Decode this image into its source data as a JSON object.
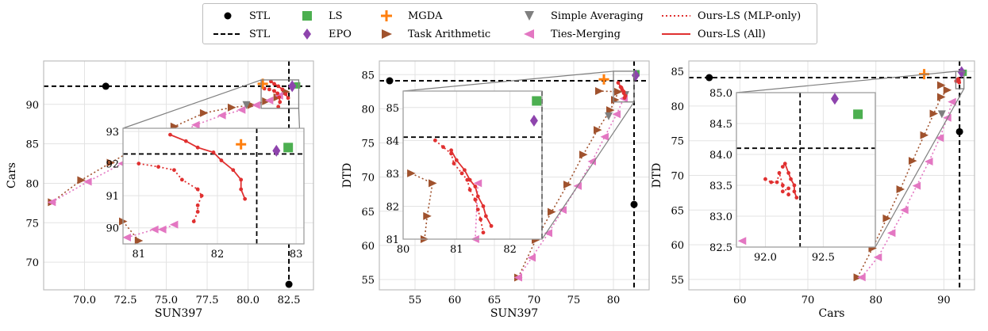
{
  "colors": {
    "STL": "#000000",
    "LS": "#4caf50",
    "EPO": "#8e44ad",
    "MGDA": "#ff7f0e",
    "Task Arithmetic": "#a0522d",
    "Simple Averaging": "#7f7f7f",
    "Ties-Merging": "#e377c2",
    "Ours-LS (MLP-only)": "#e03030",
    "Ours-LS (All)": "#e03030",
    "inset_outline": "#808080"
  },
  "legend": [
    {
      "label": "STL",
      "marker": "dot",
      "color": "#000000"
    },
    {
      "label": "STL",
      "marker": "dashed-line",
      "color": "#000000"
    },
    {
      "label": "LS",
      "marker": "square",
      "color": "#4caf50"
    },
    {
      "label": "EPO",
      "marker": "diamond",
      "color": "#8e44ad"
    },
    {
      "label": "MGDA",
      "marker": "plus",
      "color": "#ff7f0e"
    },
    {
      "label": "Task Arithmetic",
      "marker": "triangle-right",
      "color": "#a0522d"
    },
    {
      "label": "Simple Averaging",
      "marker": "triangle-down",
      "color": "#7f7f7f"
    },
    {
      "label": "Ties-Merging",
      "marker": "triangle-left",
      "color": "#e377c2"
    },
    {
      "label": "Ours-LS (MLP-only)",
      "marker": "dotted-line",
      "color": "#e03030"
    },
    {
      "label": "Ours-LS (All)",
      "marker": "solid-line",
      "color": "#e03030"
    }
  ],
  "chart_data": [
    {
      "type": "scatter",
      "xlabel": "SUN397",
      "ylabel": "Cars",
      "xlim": [
        67.5,
        84
      ],
      "ylim": [
        66.5,
        95.5
      ],
      "xticks": [
        70.0,
        72.5,
        75.0,
        77.5,
        80.0,
        82.5
      ],
      "xtick_labels": [
        "70.0",
        "72.5",
        "75.0",
        "77.5",
        "80.0",
        "82.5"
      ],
      "yticks": [
        70,
        75,
        80,
        85,
        90
      ],
      "stl_dot_x": [
        71.3,
        82.5
      ],
      "stl_dot_y": [
        92.3,
        67.2
      ],
      "stl_vline": 82.5,
      "stl_hline": 92.3,
      "ls": [
        [
          82.1,
          84.7
        ],
        [
          83.0,
          92.4
        ]
      ],
      "epo": [
        [
          80.5,
          83.5
        ],
        [
          82.7,
          92.3
        ]
      ],
      "mgda": [
        [
          80.9,
          92.6
        ]
      ],
      "simple_avg": [
        [
          79.9,
          89.9
        ]
      ],
      "task_arith": [
        [
          68.0,
          77.6
        ],
        [
          69.8,
          80.4
        ],
        [
          71.6,
          82.6
        ],
        [
          73.6,
          85.0
        ],
        [
          75.5,
          87.2
        ],
        [
          77.3,
          88.9
        ],
        [
          79.0,
          89.6
        ],
        [
          80.2,
          89.9
        ],
        [
          81.1,
          90.4
        ],
        [
          81.8,
          90.9
        ],
        [
          82.3,
          91.6
        ]
      ],
      "ties": [
        [
          68.0,
          77.6
        ],
        [
          70.2,
          80.2
        ],
        [
          72.3,
          82.5
        ],
        [
          74.7,
          85.1
        ],
        [
          76.8,
          87.4
        ],
        [
          78.4,
          88.6
        ],
        [
          79.6,
          89.3
        ],
        [
          80.5,
          89.9
        ],
        [
          81.3,
          90.5
        ],
        [
          81.9,
          91.1
        ]
      ],
      "ours_mlp": [
        [
          81.0,
          92.0
        ],
        [
          81.3,
          91.9
        ],
        [
          81.6,
          91.7
        ],
        [
          81.8,
          91.4
        ],
        [
          81.9,
          90.9
        ],
        [
          81.95,
          90.3
        ],
        [
          81.85,
          89.7
        ]
      ],
      "ours_all": [
        [
          81.4,
          92.9
        ],
        [
          81.6,
          92.6
        ],
        [
          81.85,
          92.3
        ],
        [
          82.1,
          91.9
        ],
        [
          82.3,
          91.3
        ],
        [
          82.45,
          90.8
        ]
      ],
      "zoom_x": [
        80.8,
        83.1
      ],
      "zoom_y": [
        89.5,
        93.1
      ],
      "inset_xticks": [
        81,
        82,
        83
      ],
      "inset_xtick_labels": [
        "81",
        "82",
        "83"
      ],
      "inset_yticks": [
        90,
        91,
        92,
        93
      ],
      "inset_ytick_labels": [
        "90",
        "91",
        "92",
        "93"
      ],
      "inset_points": {
        "ls": [
          [
            82.9,
            92.5
          ]
        ],
        "epo": [
          [
            82.75,
            92.4
          ]
        ],
        "mgda": [
          [
            82.3,
            92.6
          ]
        ],
        "task_arith": [
          [
            80.8,
            90.2
          ],
          [
            81.0,
            89.6
          ]
        ],
        "ties": [
          [
            80.85,
            89.7
          ],
          [
            81.2,
            89.95
          ],
          [
            81.3,
            89.95
          ],
          [
            81.45,
            90.1
          ]
        ],
        "ours_mlp": [
          [
            81.0,
            92.0
          ],
          [
            81.25,
            91.9
          ],
          [
            81.45,
            91.8
          ],
          [
            81.55,
            91.5
          ],
          [
            81.75,
            91.2
          ],
          [
            81.8,
            91.0
          ],
          [
            81.75,
            90.7
          ],
          [
            81.75,
            90.5
          ],
          [
            81.7,
            90.2
          ]
        ],
        "ours_all": [
          [
            81.4,
            92.9
          ],
          [
            81.6,
            92.7
          ],
          [
            81.75,
            92.5
          ],
          [
            81.95,
            92.35
          ],
          [
            82.05,
            92.1
          ],
          [
            82.2,
            91.8
          ],
          [
            82.3,
            91.5
          ],
          [
            82.3,
            91.2
          ],
          [
            82.35,
            90.9
          ]
        ]
      }
    },
    {
      "type": "scatter",
      "xlabel": "SUN397",
      "ylabel": "DTD",
      "xlim": [
        50.5,
        84.5
      ],
      "ylim": [
        53.5,
        87
      ],
      "xticks": [
        55,
        60,
        65,
        70,
        75,
        80
      ],
      "xtick_labels": [
        "55",
        "60",
        "65",
        "70",
        "75",
        "80"
      ],
      "yticks": [
        55,
        60,
        65,
        70,
        75,
        80,
        85
      ],
      "stl_dot_x": [
        51.8,
        82.6
      ],
      "stl_dot_y": [
        84.1,
        66.0
      ],
      "stl_vline": 82.6,
      "stl_hline": 84.1,
      "ls": [
        [
          82.9,
          85.2
        ]
      ],
      "epo": [
        [
          82.8,
          84.9
        ]
      ],
      "mgda": [
        [
          78.8,
          84.3
        ]
      ],
      "simple_avg": [
        [
          79.4,
          78.9
        ],
        [
          81.5,
          82.0
        ]
      ],
      "task_arith": [
        [
          68.0,
          55.3
        ],
        [
          70.2,
          60.8
        ],
        [
          72.2,
          64.9
        ],
        [
          74.2,
          68.9
        ],
        [
          76.2,
          73.3
        ],
        [
          78.0,
          76.9
        ],
        [
          79.6,
          79.8
        ],
        [
          80.2,
          81.3
        ],
        [
          80.6,
          82.5
        ],
        [
          78.2,
          82.6
        ]
      ],
      "ties": [
        [
          68.0,
          55.3
        ],
        [
          69.7,
          58.2
        ],
        [
          71.8,
          61.8
        ],
        [
          73.6,
          65.2
        ],
        [
          75.5,
          68.7
        ],
        [
          77.3,
          72.3
        ],
        [
          78.9,
          75.9
        ],
        [
          80.4,
          79.2
        ],
        [
          81.3,
          81.5
        ]
      ],
      "ours_mlp": [
        [
          80.9,
          83.2
        ],
        [
          81.1,
          82.8
        ],
        [
          81.3,
          82.3
        ],
        [
          81.4,
          81.6
        ]
      ],
      "ours_all": [
        [
          80.6,
          83.8
        ],
        [
          81.0,
          83.1
        ],
        [
          81.3,
          82.5
        ],
        [
          81.5,
          81.9
        ]
      ],
      "zoom_x": [
        80,
        82.6
      ],
      "zoom_y": [
        81,
        85.5
      ],
      "inset_xticks": [
        80,
        81,
        82
      ],
      "inset_xtick_labels": [
        "80",
        "81",
        "82"
      ],
      "inset_yticks": [
        81,
        82,
        83,
        84,
        85
      ],
      "inset_ytick_labels": [
        "81",
        "82",
        "83",
        "84",
        "85"
      ],
      "inset_points": {
        "ls": [
          [
            82.5,
            85.2
          ]
        ],
        "epo": [
          [
            82.45,
            84.6
          ]
        ],
        "task_arith": [
          [
            80.15,
            83.0
          ],
          [
            80.55,
            82.7
          ],
          [
            80.45,
            81.7
          ],
          [
            80.4,
            81.0
          ]
        ],
        "ties": [
          [
            81.4,
            82.7
          ],
          [
            81.35,
            81.0
          ]
        ],
        "ours_mlp": [
          [
            80.6,
            84.0
          ],
          [
            80.75,
            83.8
          ],
          [
            80.9,
            83.6
          ],
          [
            80.95,
            83.3
          ],
          [
            81.1,
            83.0
          ],
          [
            81.2,
            82.8
          ],
          [
            81.25,
            82.5
          ],
          [
            81.35,
            82.2
          ],
          [
            81.4,
            81.9
          ],
          [
            81.45,
            81.6
          ],
          [
            81.5,
            81.2
          ]
        ],
        "ours_all": [
          [
            80.9,
            83.7
          ],
          [
            81.0,
            83.4
          ],
          [
            81.15,
            83.1
          ],
          [
            81.25,
            82.8
          ],
          [
            81.35,
            82.6
          ],
          [
            81.4,
            82.3
          ],
          [
            81.5,
            82.0
          ],
          [
            81.55,
            81.7
          ],
          [
            81.65,
            81.4
          ]
        ]
      }
    },
    {
      "type": "scatter",
      "xlabel": "Cars",
      "ylabel": "DTD",
      "xlim": [
        52.5,
        94.5
      ],
      "ylim": [
        53.5,
        86.5
      ],
      "xticks": [
        60,
        70,
        80,
        90
      ],
      "xtick_labels": [
        "60",
        "70",
        "80",
        "90"
      ],
      "yticks": [
        55,
        60,
        65,
        70,
        75,
        80,
        85
      ],
      "stl_dot_x": [
        55.5,
        92.3
      ],
      "stl_dot_y": [
        84.1,
        76.3
      ],
      "stl_vline": 92.3,
      "stl_hline": 84.1,
      "ls": [
        [
          92.9,
          84.8
        ]
      ],
      "epo": [
        [
          92.6,
          84.9
        ]
      ],
      "mgda": [
        [
          87.1,
          84.6
        ]
      ],
      "simple_avg": [
        [
          89.7,
          78.8
        ]
      ],
      "task_arith": [
        [
          77.3,
          55.3
        ],
        [
          79.5,
          59.5
        ],
        [
          81.6,
          63.8
        ],
        [
          83.6,
          68.0
        ],
        [
          85.4,
          72.1
        ],
        [
          87.1,
          75.8
        ],
        [
          88.5,
          78.9
        ],
        [
          89.6,
          81.3
        ],
        [
          90.5,
          82.3
        ],
        [
          89.6,
          83.0
        ]
      ],
      "ties": [
        [
          77.9,
          55.3
        ],
        [
          80.3,
          58.2
        ],
        [
          82.3,
          61.7
        ],
        [
          84.2,
          65.0
        ],
        [
          86.0,
          68.5
        ],
        [
          87.8,
          72.0
        ],
        [
          89.4,
          75.4
        ],
        [
          90.5,
          78.3
        ],
        [
          91.2,
          80.6
        ]
      ],
      "ours_mlp": [
        [
          91.8,
          83.6
        ],
        [
          92.0,
          83.8
        ],
        [
          92.2,
          83.5
        ]
      ],
      "ours_all": [
        [
          92.1,
          83.9
        ],
        [
          92.2,
          83.7
        ],
        [
          92.25,
          83.4
        ]
      ],
      "zoom_x": [
        91.75,
        92.95
      ],
      "zoom_y": [
        82.5,
        85.0
      ],
      "inset_xticks": [
        92.0,
        92.5
      ],
      "inset_xtick_labels": [
        "92.0",
        "92.5"
      ],
      "inset_yticks": [
        82.5,
        83.0,
        83.5,
        84.0,
        84.5,
        85.0
      ],
      "inset_ytick_labels": [
        "82.5",
        "83.0",
        "83.5",
        "84.0",
        "84.5",
        "85.0"
      ],
      "inset_points": {
        "ls": [
          [
            92.8,
            84.65
          ]
        ],
        "epo": [
          [
            92.6,
            84.9
          ]
        ],
        "ties": [
          [
            91.8,
            82.6
          ]
        ],
        "ours_mlp": [
          [
            92.0,
            83.6
          ],
          [
            92.05,
            83.55
          ],
          [
            92.1,
            83.55
          ],
          [
            92.12,
            83.7
          ],
          [
            92.15,
            83.5
          ],
          [
            92.15,
            83.4
          ],
          [
            92.2,
            83.45
          ],
          [
            92.2,
            83.35
          ]
        ],
        "ours_all": [
          [
            92.15,
            83.8
          ],
          [
            92.17,
            83.85
          ],
          [
            92.2,
            83.7
          ],
          [
            92.22,
            83.6
          ],
          [
            92.25,
            83.5
          ],
          [
            92.25,
            83.4
          ],
          [
            92.27,
            83.3
          ]
        ]
      }
    }
  ]
}
